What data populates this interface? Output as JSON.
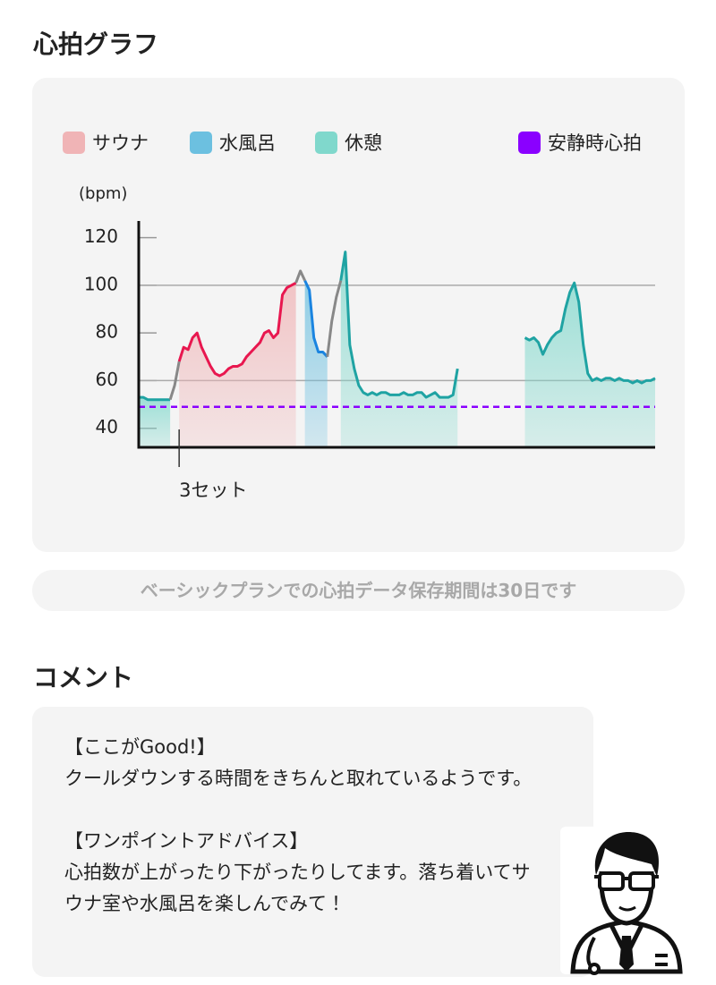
{
  "header": {
    "title": "心拍グラフ"
  },
  "chart_data": {
    "type": "line",
    "ylabel": "(bpm)",
    "xlim": [
      0,
      115
    ],
    "ylim": [
      32,
      127
    ],
    "yticks": [
      40,
      60,
      80,
      100,
      120
    ],
    "gridlines": [
      60,
      100
    ],
    "series": [
      {
        "name": "サウナ",
        "color": "#e8174f",
        "fill": "#f0b4b6",
        "x": [
          9,
          10,
          11,
          12,
          13,
          14,
          15,
          16,
          17,
          18,
          19,
          20,
          21,
          22,
          23,
          24,
          25,
          26,
          27,
          28,
          29,
          30,
          31,
          32,
          33,
          34,
          35
        ],
        "values": [
          68,
          74,
          73,
          78,
          80,
          74,
          70,
          66,
          63,
          62,
          63,
          65,
          66,
          66,
          67,
          70,
          72,
          74,
          76,
          80,
          81,
          78,
          80,
          96,
          99,
          100,
          101
        ]
      },
      {
        "name": "水風呂",
        "color": "#1a84e0",
        "fill": "#6cc0e0",
        "x": [
          37,
          38,
          39,
          40,
          41,
          42
        ],
        "values": [
          102,
          98,
          78,
          72,
          72,
          70
        ]
      },
      {
        "name": "休憩",
        "color": "#1fa3a3",
        "fill": "#80d8cc",
        "x": [
          0,
          1,
          2,
          3,
          4,
          5,
          6,
          7,
          null,
          45,
          46,
          47,
          48,
          49,
          50,
          51,
          52,
          53,
          54,
          55,
          56,
          57,
          58,
          59,
          60,
          61,
          62,
          63,
          64,
          65,
          66,
          67,
          68,
          69,
          70,
          71,
          null,
          86,
          87,
          88,
          89,
          90,
          91,
          92,
          93,
          94,
          95,
          96,
          97,
          98,
          99,
          100,
          101,
          102,
          103,
          104,
          105,
          106,
          107,
          108,
          109,
          110,
          111,
          112,
          113,
          114,
          115
        ],
        "values": [
          53,
          53,
          52,
          52,
          52,
          52,
          52,
          52,
          null,
          102,
          114,
          75,
          65,
          58,
          55,
          54,
          55,
          54,
          55,
          55,
          54,
          54,
          54,
          55,
          54,
          54,
          55,
          55,
          53,
          54,
          55,
          53,
          53,
          53,
          54,
          65,
          null,
          78,
          77,
          78,
          76,
          71,
          75,
          78,
          80,
          81,
          90,
          97,
          101,
          93,
          75,
          63,
          60,
          61,
          60,
          61,
          61,
          60,
          61,
          60,
          60,
          59,
          60,
          59,
          60,
          60,
          61
        ]
      },
      {
        "color": "#888888",
        "x": [
          7,
          8,
          9,
          null,
          35,
          36,
          37,
          null,
          42,
          43,
          44,
          45
        ],
        "values": [
          52,
          58,
          68,
          null,
          101,
          106,
          102,
          null,
          70,
          85,
          95,
          102
        ]
      }
    ],
    "resting": {
      "name": "安静時心拍",
      "color": "#8a00ff",
      "value": 49
    },
    "annotation": {
      "text": "3セット",
      "x": 9
    }
  },
  "notice": "ベーシックプランでの心拍データ保存期間は30日です",
  "comment": {
    "title": "コメント",
    "paragraphs": [
      [
        "【ここがGood!】",
        "クールダウンする時間をきちんと取れているようです。"
      ],
      [
        "【ワンポイントアドバイス】",
        "心拍数が上がったり下がったりしてます。落ち着いてサウナ室や水風呂を楽しんでみて！"
      ]
    ]
  }
}
